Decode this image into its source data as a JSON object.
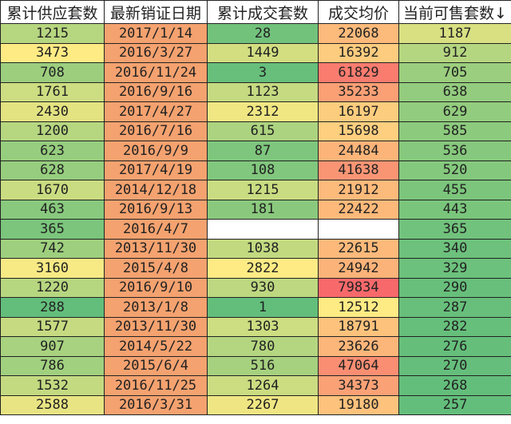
{
  "headers": [
    "累计供应套数",
    "最新销证日期",
    "累计成交套数",
    "成交均价",
    "当前可售套数↓"
  ],
  "sort_indicator": "descending on 当前可售套数",
  "colors": {
    "green": "#63be7b",
    "yellow": "#ffeb84",
    "red": "#f8696b",
    "date": "#f4a26f",
    "blank": "#ffffff"
  },
  "rows": [
    [
      "1215",
      "2017/1/14",
      "28",
      "22068",
      "1187"
    ],
    [
      "3473",
      "2016/3/27",
      "1449",
      "16392",
      "912"
    ],
    [
      "708",
      "2016/11/24",
      "3",
      "61829",
      "705"
    ],
    [
      "1761",
      "2016/9/16",
      "1123",
      "35233",
      "638"
    ],
    [
      "2430",
      "2017/4/27",
      "2312",
      "16197",
      "629"
    ],
    [
      "1200",
      "2016/7/16",
      "615",
      "15698",
      "585"
    ],
    [
      "623",
      "2016/9/9",
      "87",
      "24484",
      "536"
    ],
    [
      "628",
      "2017/4/19",
      "108",
      "41638",
      "520"
    ],
    [
      "1670",
      "2014/12/18",
      "1215",
      "21912",
      "455"
    ],
    [
      "463",
      "2016/9/13",
      "181",
      "22422",
      "443"
    ],
    [
      "365",
      "2016/4/7",
      "",
      "",
      "365"
    ],
    [
      "742",
      "2013/11/30",
      "1038",
      "22615",
      "340"
    ],
    [
      "3160",
      "2015/4/8",
      "2822",
      "24942",
      "329"
    ],
    [
      "1220",
      "2016/9/10",
      "930",
      "79834",
      "290"
    ],
    [
      "288",
      "2013/1/8",
      "1",
      "12512",
      "287"
    ],
    [
      "1577",
      "2013/11/30",
      "1303",
      "18791",
      "282"
    ],
    [
      "907",
      "2014/5/22",
      "780",
      "23626",
      "276"
    ],
    [
      "786",
      "2015/6/4",
      "516",
      "47064",
      "270"
    ],
    [
      "1532",
      "2016/11/25",
      "1264",
      "34373",
      "268"
    ],
    [
      "2588",
      "2016/3/31",
      "2267",
      "19180",
      "257"
    ]
  ]
}
